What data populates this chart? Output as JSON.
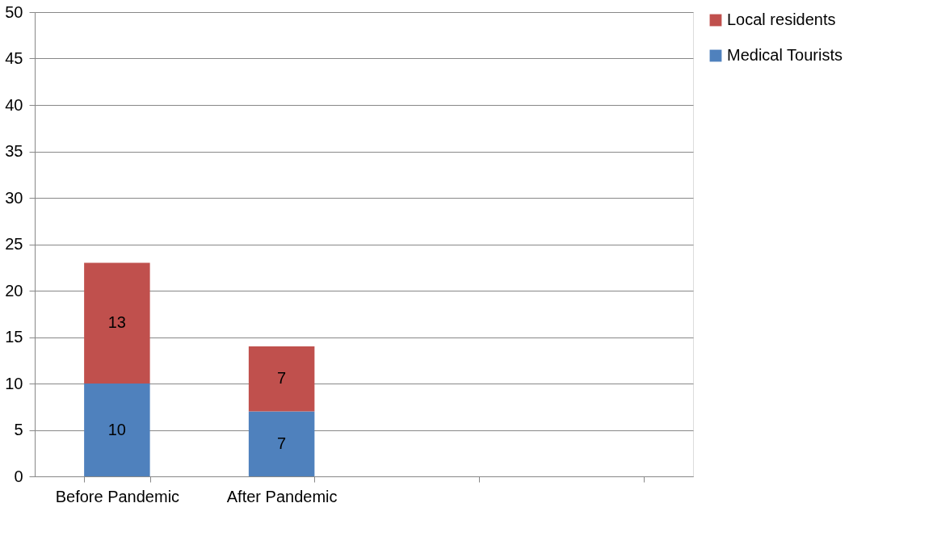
{
  "chart_data": {
    "type": "bar",
    "stacked": true,
    "categories": [
      "Before Pandemic",
      "After Pandemic",
      null,
      null
    ],
    "series": [
      {
        "name": "Medical Tourists",
        "color": "#4f81bd",
        "values": [
          10,
          7,
          null,
          null
        ]
      },
      {
        "name": "Local residents",
        "color": "#c0504d",
        "values": [
          13,
          7,
          null,
          null
        ]
      }
    ],
    "ylim": [
      0,
      50
    ],
    "yticks": [
      0,
      5,
      10,
      15,
      20,
      25,
      30,
      35,
      40,
      45,
      50
    ],
    "grid": "y",
    "legend": "right",
    "data_labels": true
  }
}
